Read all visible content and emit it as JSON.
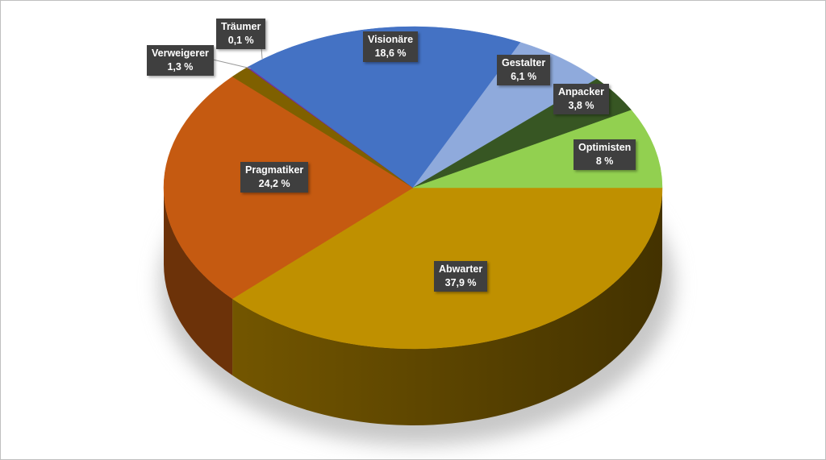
{
  "chart_data": {
    "type": "pie",
    "style": "3d",
    "start": "right, clockwise",
    "slices": [
      {
        "name": "Abwarter",
        "value": 37.9,
        "label": "37,9 %",
        "color": "#BF9000"
      },
      {
        "name": "Pragmatiker",
        "value": 24.2,
        "label": "24,2 %",
        "color": "#C55A11"
      },
      {
        "name": "Verweigerer",
        "value": 1.3,
        "label": "1,3 %",
        "color": "#7F6000"
      },
      {
        "name": "Träumer",
        "value": 0.1,
        "label": "0,1 %",
        "color": "#7030A0"
      },
      {
        "name": "Visionäre",
        "value": 18.6,
        "label": "18,6 %",
        "color": "#4472C4"
      },
      {
        "name": "Gestalter",
        "value": 6.1,
        "label": "6,1 %",
        "color": "#8FAADC"
      },
      {
        "name": "Anpacker",
        "value": 3.8,
        "label": "3,8 %",
        "color": "#375623"
      },
      {
        "name": "Optimisten",
        "value": 8,
        "label": "8 %",
        "color": "#92D050"
      }
    ]
  }
}
